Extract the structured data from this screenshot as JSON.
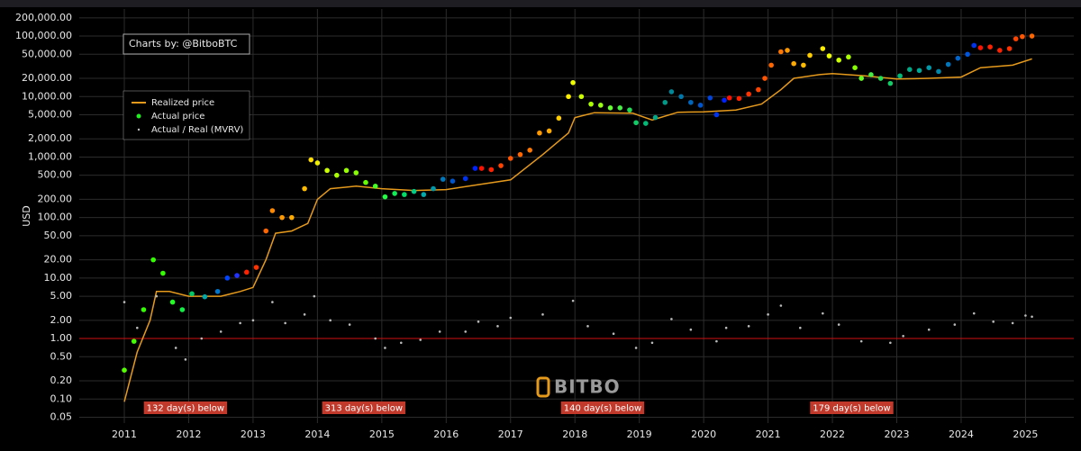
{
  "chart_data": {
    "type": "line",
    "credit": "Charts by: @BitboBTC",
    "ylabel": "USD",
    "watermark": "BITBO",
    "log_y": true,
    "grid": true,
    "legend": "upper left",
    "xlim": [
      2010.3,
      2025.75
    ],
    "xticks": [
      2011,
      2012,
      2013,
      2014,
      2015,
      2016,
      2017,
      2018,
      2019,
      2020,
      2021,
      2022,
      2023,
      2024,
      2025
    ],
    "ylim": [
      0.04,
      280000
    ],
    "yticks": [
      {
        "value": 0.05,
        "label": "0.05"
      },
      {
        "value": 0.1,
        "label": "0.10"
      },
      {
        "value": 0.2,
        "label": "0.20"
      },
      {
        "value": 0.5,
        "label": "0.50"
      },
      {
        "value": 1,
        "label": "1.00"
      },
      {
        "value": 2,
        "label": "2.00"
      },
      {
        "value": 5,
        "label": "5.00"
      },
      {
        "value": 10,
        "label": "10.00"
      },
      {
        "value": 20,
        "label": "20.00"
      },
      {
        "value": 50,
        "label": "50.00"
      },
      {
        "value": 100,
        "label": "100.00"
      },
      {
        "value": 200,
        "label": "200.00"
      },
      {
        "value": 500,
        "label": "500.00"
      },
      {
        "value": 1000,
        "label": "1,000.00"
      },
      {
        "value": 2000,
        "label": "2,000.00"
      },
      {
        "value": 5000,
        "label": "5,000.00"
      },
      {
        "value": 10000,
        "label": "10,000.00"
      },
      {
        "value": 20000,
        "label": "20,000.00"
      },
      {
        "value": 50000,
        "label": "50,000.00"
      },
      {
        "value": 100000,
        "label": "100,000.00"
      },
      {
        "value": 200000,
        "label": "200,000.00"
      }
    ],
    "hline": {
      "value": 1,
      "color": "#d01010"
    },
    "annotations": [
      {
        "text": "132 day(s) below",
        "x": 2011.95
      },
      {
        "text": "313 day(s) below",
        "x": 2014.72
      },
      {
        "text": "140 day(s) below",
        "x": 2018.43
      },
      {
        "text": "179 day(s) below",
        "x": 2022.3
      }
    ],
    "series": [
      {
        "name": "Realized price",
        "type": "line",
        "color": "#e69a1c",
        "x": [
          2011.0,
          2011.2,
          2011.4,
          2011.5,
          2011.7,
          2012.0,
          2012.5,
          2012.8,
          2013.0,
          2013.2,
          2013.35,
          2013.6,
          2013.85,
          2014.0,
          2014.2,
          2014.6,
          2015.0,
          2015.5,
          2016.0,
          2016.5,
          2017.0,
          2017.5,
          2017.9,
          2018.0,
          2018.3,
          2018.9,
          2019.2,
          2019.6,
          2020.0,
          2020.5,
          2020.9,
          2021.2,
          2021.4,
          2021.8,
          2022.0,
          2022.5,
          2023.0,
          2023.5,
          2024.0,
          2024.3,
          2024.8,
          2025.1
        ],
        "values": [
          0.09,
          0.6,
          2,
          6,
          6,
          5,
          5,
          6,
          7,
          20,
          55,
          60,
          80,
          200,
          300,
          330,
          300,
          280,
          290,
          350,
          420,
          1100,
          2500,
          4500,
          5400,
          5300,
          4100,
          5500,
          5600,
          6000,
          7500,
          13000,
          20000,
          23000,
          24000,
          22000,
          19500,
          20000,
          21000,
          30000,
          33000,
          42000
        ]
      },
      {
        "name": "Actual price",
        "type": "scatter",
        "color": "#22ee22",
        "x": [
          2011.0,
          2011.15,
          2011.3,
          2011.45,
          2011.6,
          2011.75,
          2011.9,
          2012.05,
          2012.25,
          2012.45,
          2012.6,
          2012.75,
          2012.9,
          2013.05,
          2013.2,
          2013.3,
          2013.45,
          2013.6,
          2013.8,
          2013.9,
          2014.0,
          2014.15,
          2014.3,
          2014.45,
          2014.6,
          2014.75,
          2014.9,
          2015.05,
          2015.2,
          2015.35,
          2015.5,
          2015.65,
          2015.8,
          2015.95,
          2016.1,
          2016.3,
          2016.45,
          2016.55,
          2016.7,
          2016.85,
          2017.0,
          2017.15,
          2017.3,
          2017.45,
          2017.6,
          2017.75,
          2017.9,
          2017.97,
          2018.1,
          2018.25,
          2018.4,
          2018.55,
          2018.7,
          2018.85,
          2018.95,
          2019.1,
          2019.25,
          2019.4,
          2019.5,
          2019.65,
          2019.8,
          2019.95,
          2020.1,
          2020.2,
          2020.32,
          2020.4,
          2020.55,
          2020.7,
          2020.85,
          2020.95,
          2021.05,
          2021.2,
          2021.3,
          2021.4,
          2021.55,
          2021.65,
          2021.85,
          2021.95,
          2022.1,
          2022.25,
          2022.35,
          2022.45,
          2022.6,
          2022.75,
          2022.9,
          2023.05,
          2023.2,
          2023.35,
          2023.5,
          2023.65,
          2023.8,
          2023.95,
          2024.1,
          2024.2,
          2024.3,
          2024.45,
          2024.6,
          2024.75,
          2024.85,
          2024.95,
          2025.1
        ],
        "values": [
          0.3,
          0.9,
          3,
          20,
          12,
          4,
          3,
          5.5,
          4.9,
          6,
          10,
          11,
          12.5,
          15,
          60,
          130,
          100,
          100,
          300,
          900,
          800,
          600,
          500,
          600,
          550,
          380,
          330,
          220,
          250,
          240,
          270,
          240,
          300,
          430,
          400,
          440,
          650,
          650,
          620,
          720,
          950,
          1100,
          1300,
          2500,
          2700,
          4400,
          10000,
          17000,
          10000,
          7500,
          7200,
          6500,
          6500,
          6000,
          3700,
          3600,
          4500,
          8000,
          12000,
          10000,
          8000,
          7200,
          9500,
          5000,
          8700,
          9500,
          9300,
          11000,
          13000,
          20000,
          33000,
          55000,
          58000,
          35000,
          33000,
          48000,
          62000,
          47000,
          40000,
          45000,
          30000,
          20000,
          23000,
          20000,
          16500,
          22000,
          28000,
          27000,
          30000,
          26000,
          34000,
          43000,
          50000,
          70000,
          64000,
          66000,
          58000,
          62000,
          90000,
          98000,
          100000
        ],
        "colors": [
          "#55ff00",
          "#44ff00",
          "#33ff00",
          "#33ff00",
          "#33ff00",
          "#22ff22",
          "#11ee44",
          "#00cc66",
          "#00aaaa",
          "#0077cc",
          "#0044ff",
          "#2233ff",
          "#ff2200",
          "#ff3300",
          "#ff6600",
          "#ff8800",
          "#ff9900",
          "#ffaa00",
          "#ffbb00",
          "#ffdd00",
          "#eeee00",
          "#ccff00",
          "#aaff00",
          "#99ff00",
          "#88ff00",
          "#66ff00",
          "#44ff22",
          "#22ff44",
          "#11ee55",
          "#00dd66",
          "#00cc88",
          "#00aaaa",
          "#0099aa",
          "#0077bb",
          "#0055cc",
          "#0033ee",
          "#0022ff",
          "#ff1100",
          "#ff2200",
          "#ff4400",
          "#ff5500",
          "#ff6600",
          "#ff7700",
          "#ff9900",
          "#ffaa00",
          "#ffcc00",
          "#ffee00",
          "#eeff00",
          "#ccff00",
          "#aaff00",
          "#99ff11",
          "#66ff33",
          "#44ee44",
          "#22dd55",
          "#11cc66",
          "#00bb77",
          "#00aa88",
          "#009988",
          "#008899",
          "#0077aa",
          "#0066bb",
          "#0055cc",
          "#0044dd",
          "#0033ee",
          "#0022ff",
          "#ff1100",
          "#ff2200",
          "#ff3300",
          "#ff4400",
          "#ff5500",
          "#ff6600",
          "#ff7700",
          "#ff9900",
          "#ffaa00",
          "#ffbb00",
          "#ffcc00",
          "#ffee00",
          "#eeff00",
          "#ccff00",
          "#aaff00",
          "#88ff00",
          "#66ff22",
          "#44ee44",
          "#22dd55",
          "#11cc66",
          "#00bb77",
          "#00aa88",
          "#00aa99",
          "#0099aa",
          "#0088aa",
          "#0077bb",
          "#0066cc",
          "#0055dd",
          "#0033ee",
          "#ff1100",
          "#ff2200",
          "#ff2200",
          "#ff3300",
          "#ff4400",
          "#ff5500",
          "#ff6600"
        ]
      },
      {
        "name": "Actual / Real (MVRV)",
        "type": "scatter",
        "color": "#bbbbbb",
        "x": [
          2011.0,
          2011.2,
          2011.5,
          2011.8,
          2011.95,
          2012.2,
          2012.5,
          2012.8,
          2013.0,
          2013.3,
          2013.5,
          2013.8,
          2013.95,
          2014.2,
          2014.5,
          2014.9,
          2015.05,
          2015.3,
          2015.6,
          2015.9,
          2016.3,
          2016.5,
          2016.8,
          2017.0,
          2017.5,
          2017.97,
          2018.2,
          2018.6,
          2018.95,
          2019.2,
          2019.5,
          2019.8,
          2020.2,
          2020.35,
          2020.7,
          2021.0,
          2021.2,
          2021.5,
          2021.85,
          2022.1,
          2022.45,
          2022.9,
          2023.1,
          2023.5,
          2023.9,
          2024.2,
          2024.5,
          2024.8,
          2025.0,
          2025.1
        ],
        "values": [
          4,
          1.5,
          5,
          0.7,
          0.45,
          1,
          1.3,
          1.8,
          2,
          4,
          1.8,
          2.5,
          5,
          2,
          1.7,
          1,
          0.7,
          0.85,
          0.95,
          1.3,
          1.3,
          1.9,
          1.6,
          2.2,
          2.5,
          4.2,
          1.6,
          1.2,
          0.7,
          0.85,
          2.1,
          1.4,
          0.9,
          1.5,
          1.6,
          2.5,
          3.5,
          1.5,
          2.6,
          1.7,
          0.9,
          0.85,
          1.1,
          1.4,
          1.7,
          2.6,
          1.9,
          1.8,
          2.4,
          2.3
        ]
      }
    ]
  }
}
